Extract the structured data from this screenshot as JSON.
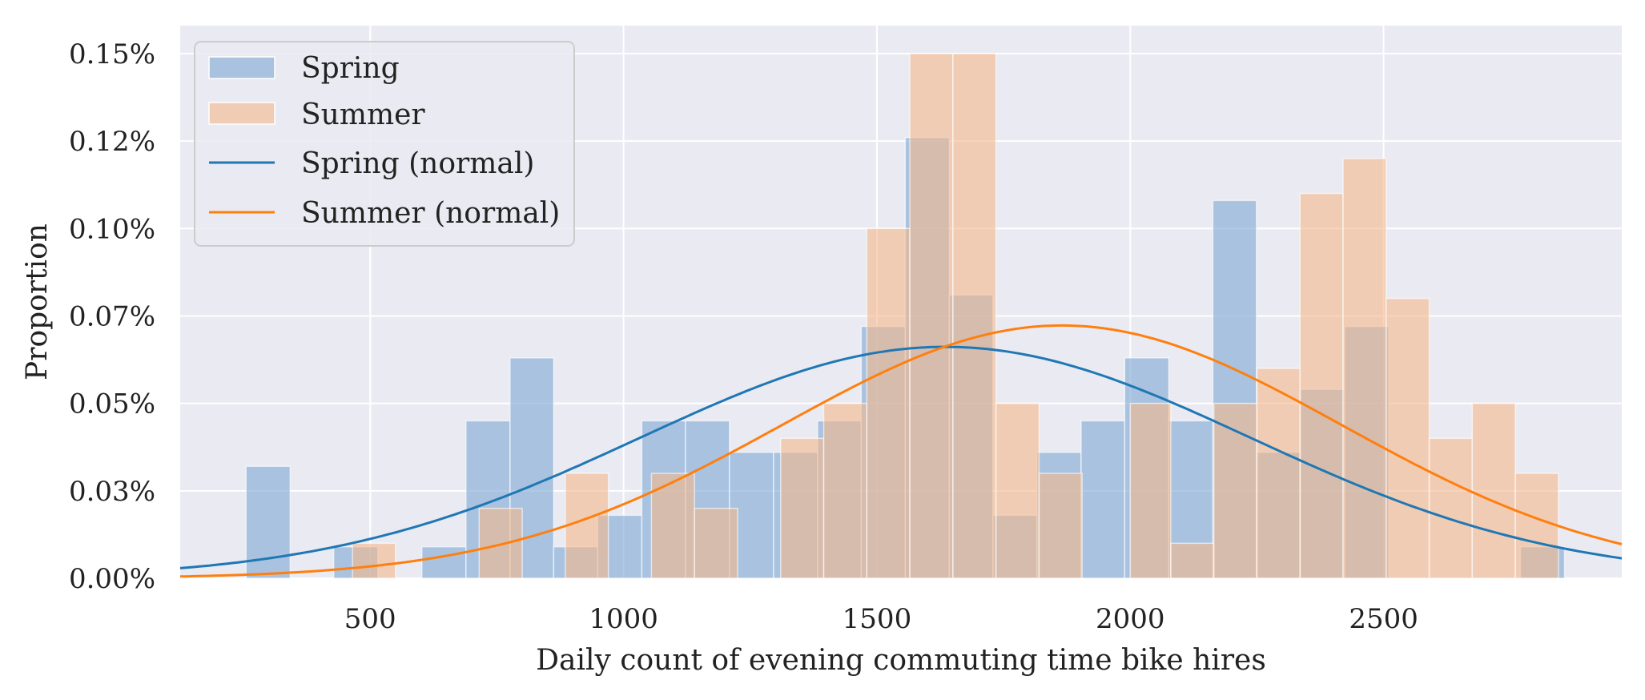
{
  "chart_data": {
    "type": "histogram",
    "xlabel": "Daily count of evening commuting time bike hires",
    "ylabel": "Proportion",
    "xlim": [
      125,
      2970
    ],
    "ylim": [
      0,
      0.00158
    ],
    "x_ticks": [
      500,
      1000,
      1500,
      2000,
      2500
    ],
    "x_tick_labels": [
      "500",
      "1000",
      "1500",
      "2000",
      "2500"
    ],
    "y_ticks": [
      0,
      0.00025,
      0.0005,
      0.00075,
      0.001,
      0.00125,
      0.0015
    ],
    "y_tick_labels": [
      "0.00%",
      "0.03%",
      "0.05%",
      "0.07%",
      "0.10%",
      "0.12%",
      "0.15%"
    ],
    "grid": true,
    "legend_position": "top-left",
    "legend": [
      "Spring",
      "Summer",
      "Spring (normal)",
      "Summer (normal)"
    ],
    "series": [
      {
        "name": "Spring",
        "kind": "bars",
        "color": "#7ba7d3",
        "bins": [
          {
            "x0": 255,
            "x1": 342,
            "y": 0.00032
          },
          {
            "x0": 428,
            "x1": 515,
            "y": 9e-05
          },
          {
            "x0": 602,
            "x1": 689,
            "y": 9e-05
          },
          {
            "x0": 689,
            "x1": 776,
            "y": 0.00045
          },
          {
            "x0": 776,
            "x1": 862,
            "y": 0.00063
          },
          {
            "x0": 862,
            "x1": 949,
            "y": 9e-05
          },
          {
            "x0": 949,
            "x1": 1036,
            "y": 0.00018
          },
          {
            "x0": 1036,
            "x1": 1122,
            "y": 0.00045
          },
          {
            "x0": 1122,
            "x1": 1209,
            "y": 0.00045
          },
          {
            "x0": 1209,
            "x1": 1296,
            "y": 0.00036
          },
          {
            "x0": 1296,
            "x1": 1383,
            "y": 0.00036
          },
          {
            "x0": 1383,
            "x1": 1469,
            "y": 0.00045
          },
          {
            "x0": 1469,
            "x1": 1556,
            "y": 0.00072
          },
          {
            "x0": 1556,
            "x1": 1643,
            "y": 0.00126
          },
          {
            "x0": 1643,
            "x1": 1729,
            "y": 0.00081
          },
          {
            "x0": 1729,
            "x1": 1816,
            "y": 0.00018
          },
          {
            "x0": 1816,
            "x1": 1903,
            "y": 0.00036
          },
          {
            "x0": 1903,
            "x1": 1989,
            "y": 0.00045
          },
          {
            "x0": 1989,
            "x1": 2076,
            "y": 0.00063
          },
          {
            "x0": 2076,
            "x1": 2163,
            "y": 0.00045
          },
          {
            "x0": 2163,
            "x1": 2249,
            "y": 0.00108
          },
          {
            "x0": 2249,
            "x1": 2336,
            "y": 0.00036
          },
          {
            "x0": 2336,
            "x1": 2423,
            "y": 0.00054
          },
          {
            "x0": 2423,
            "x1": 2510,
            "y": 0.00072
          },
          {
            "x0": 2770,
            "x1": 2857,
            "y": 9e-05
          }
        ]
      },
      {
        "name": "Summer",
        "kind": "bars",
        "color": "#f5b88a",
        "bins": [
          {
            "x0": 465,
            "x1": 550,
            "y": 0.0001
          },
          {
            "x0": 715,
            "x1": 800,
            "y": 0.0002
          },
          {
            "x0": 885,
            "x1": 970,
            "y": 0.0003
          },
          {
            "x0": 1055,
            "x1": 1140,
            "y": 0.0003
          },
          {
            "x0": 1140,
            "x1": 1225,
            "y": 0.0002
          },
          {
            "x0": 1310,
            "x1": 1395,
            "y": 0.0004
          },
          {
            "x0": 1395,
            "x1": 1480,
            "y": 0.0005
          },
          {
            "x0": 1480,
            "x1": 1565,
            "y": 0.001
          },
          {
            "x0": 1565,
            "x1": 1650,
            "y": 0.0015
          },
          {
            "x0": 1650,
            "x1": 1735,
            "y": 0.0015
          },
          {
            "x0": 1735,
            "x1": 1820,
            "y": 0.0005
          },
          {
            "x0": 1820,
            "x1": 1905,
            "y": 0.0003
          },
          {
            "x0": 2000,
            "x1": 2080,
            "y": 0.0005
          },
          {
            "x0": 2080,
            "x1": 2165,
            "y": 0.0001
          },
          {
            "x0": 2165,
            "x1": 2250,
            "y": 0.0005
          },
          {
            "x0": 2250,
            "x1": 2335,
            "y": 0.0006
          },
          {
            "x0": 2335,
            "x1": 2420,
            "y": 0.0011
          },
          {
            "x0": 2420,
            "x1": 2505,
            "y": 0.0012
          },
          {
            "x0": 2505,
            "x1": 2590,
            "y": 0.0008
          },
          {
            "x0": 2590,
            "x1": 2675,
            "y": 0.0004
          },
          {
            "x0": 2675,
            "x1": 2760,
            "y": 0.0005
          },
          {
            "x0": 2760,
            "x1": 2845,
            "y": 0.0003
          }
        ]
      },
      {
        "name": "Spring (normal)",
        "kind": "normal",
        "color": "#1f77b4",
        "mean": 1635,
        "std": 603
      },
      {
        "name": "Summer (normal)",
        "kind": "normal",
        "color": "#ff7f0e",
        "mean": 1865,
        "std": 552
      }
    ]
  }
}
